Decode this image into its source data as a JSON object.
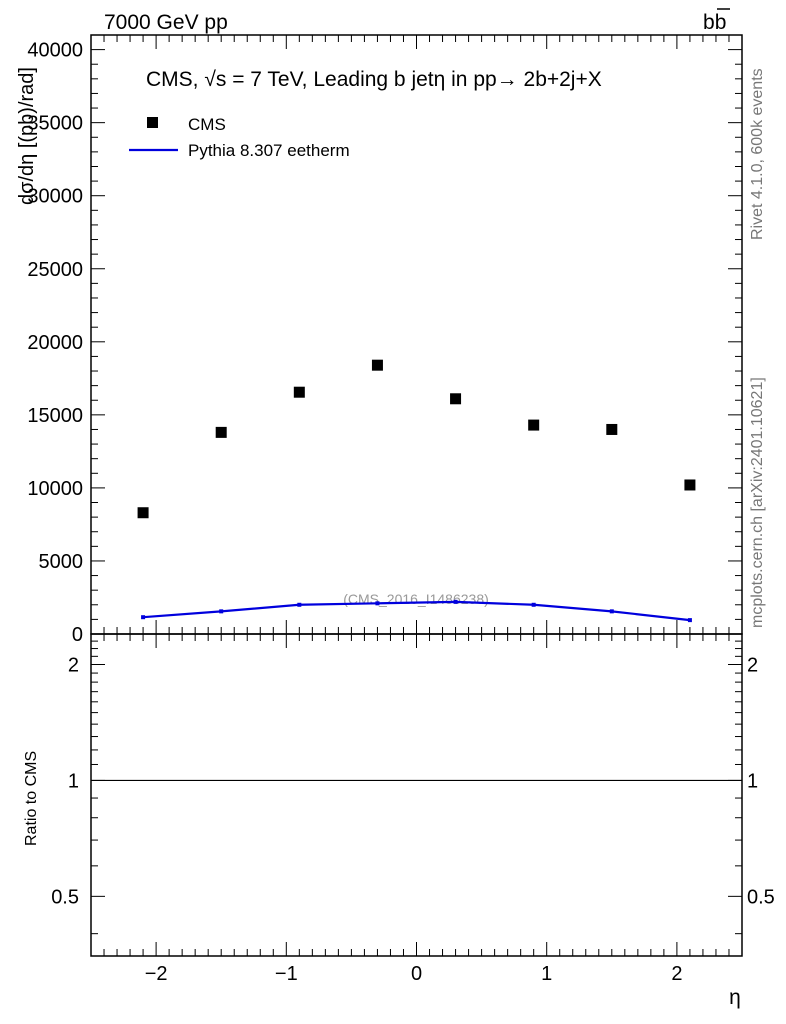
{
  "header": {
    "left_label": "7000 GeV pp",
    "right_label": "b",
    "right_label_bar": "b"
  },
  "side": {
    "rivet": "Rivet 4.1.0,  600k events",
    "mcplots": "mcplots.cern.ch [arXiv:2401.10621]"
  },
  "chart_data": {
    "type": "scatter",
    "title_prefix": "CMS, √s = 7 TeV, Leading b jet",
    "title_suffix": "η in pp→  2b+2j+X",
    "ylabel": "dσ/dη [(pb)/rad]",
    "xlabel": "η",
    "ratio_ylabel": "Ratio to CMS",
    "watermark": "(CMS_2016_I1486238)",
    "xlim": [
      -2.5,
      2.5
    ],
    "ylim": [
      0,
      41000
    ],
    "ratio_ylim": [
      0.35,
      2.4
    ],
    "x_ticks": [
      -2,
      -1,
      0,
      1,
      2
    ],
    "x_tick_labels": [
      "−2",
      "−1",
      "0",
      "1",
      "2"
    ],
    "y_ticks": [
      0,
      5000,
      10000,
      15000,
      20000,
      25000,
      30000,
      35000,
      40000
    ],
    "y_tick_labels": [
      "0",
      "5000",
      "10000",
      "15000",
      "20000",
      "25000",
      "30000",
      "35000",
      "40000"
    ],
    "ratio_ticks": [
      0.5,
      1,
      2
    ],
    "ratio_tick_labels": [
      "0.5",
      "1",
      "2"
    ],
    "legend": [
      {
        "name": "CMS",
        "kind": "marker"
      },
      {
        "name": "Pythia 8.307 eetherm",
        "kind": "line"
      }
    ],
    "series": [
      {
        "name": "CMS",
        "color": "#000000",
        "x": [
          -2.1,
          -1.5,
          -0.9,
          -0.3,
          0.3,
          0.9,
          1.5,
          2.1
        ],
        "y": [
          8300,
          13800,
          16550,
          18400,
          16100,
          14300,
          14000,
          10200
        ]
      },
      {
        "name": "Pythia 8.307 eetherm",
        "color": "#0000dd",
        "x": [
          -2.1,
          -1.5,
          -0.9,
          -0.3,
          0.3,
          0.9,
          1.5,
          2.1
        ],
        "y": [
          1150,
          1550,
          2000,
          2100,
          2200,
          2000,
          1550,
          950
        ]
      }
    ],
    "ratio_reference": 1
  }
}
